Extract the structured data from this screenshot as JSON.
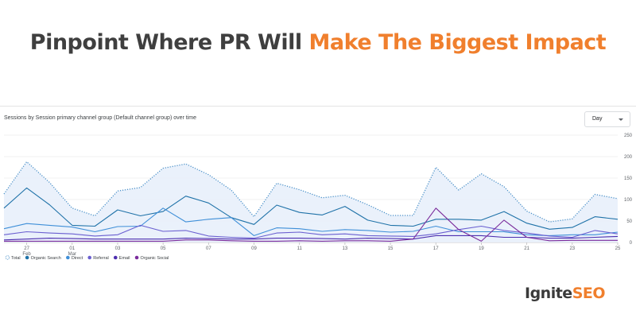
{
  "headline": {
    "dark": "Pinpoint Where PR Will ",
    "accent": "Make The Biggest Impact"
  },
  "card": {
    "title": "Sessions by Session primary channel group (Default channel group) over time",
    "period_select": {
      "value": "Day"
    }
  },
  "logo": {
    "part1": "Ignite",
    "part2": "SEO"
  },
  "colors": {
    "accent": "#f07f2d",
    "dark": "#3f3f3f"
  },
  "chart_data": {
    "type": "line",
    "y_ticks": [
      "0",
      "50",
      "100",
      "150",
      "200",
      "250"
    ],
    "ylim": [
      0,
      250
    ],
    "grid": true,
    "legend_position": "bottom-left",
    "x_ticks": [
      {
        "index": 1,
        "label": "27",
        "sub": "Feb"
      },
      {
        "index": 3,
        "label": "01",
        "sub": "Mar"
      },
      {
        "index": 5,
        "label": "03"
      },
      {
        "index": 7,
        "label": "05"
      },
      {
        "index": 9,
        "label": "07"
      },
      {
        "index": 11,
        "label": "09"
      },
      {
        "index": 13,
        "label": "11"
      },
      {
        "index": 15,
        "label": "13"
      },
      {
        "index": 17,
        "label": "15"
      },
      {
        "index": 19,
        "label": "17"
      },
      {
        "index": 21,
        "label": "19"
      },
      {
        "index": 23,
        "label": "21"
      },
      {
        "index": 25,
        "label": "23"
      },
      {
        "index": 27,
        "label": "25"
      }
    ],
    "series": [
      {
        "name": "Total",
        "color": "#4a90c8",
        "style": "dotted",
        "fill": true,
        "values": [
          113,
          188,
          140,
          80,
          62,
          120,
          128,
          173,
          183,
          158,
          122,
          60,
          138,
          123,
          104,
          110,
          88,
          63,
          63,
          175,
          122,
          160,
          130,
          73,
          48,
          55,
          112,
          102
        ]
      },
      {
        "name": "Organic Search",
        "color": "#1f72a8",
        "style": "solid",
        "values": [
          80,
          127,
          88,
          40,
          38,
          76,
          62,
          72,
          108,
          92,
          58,
          42,
          87,
          70,
          64,
          84,
          52,
          40,
          38,
          54,
          54,
          52,
          72,
          45,
          31,
          35,
          60,
          54
        ]
      },
      {
        "name": "Direct",
        "color": "#3f8fd8",
        "style": "solid",
        "values": [
          32,
          44,
          40,
          36,
          25,
          37,
          38,
          80,
          48,
          54,
          58,
          16,
          34,
          32,
          26,
          30,
          28,
          24,
          26,
          38,
          25,
          25,
          25,
          18,
          16,
          18,
          18,
          24
        ]
      },
      {
        "name": "Referral",
        "color": "#6a5fd0",
        "style": "solid",
        "values": [
          18,
          25,
          22,
          20,
          15,
          18,
          40,
          26,
          28,
          15,
          12,
          10,
          22,
          24,
          18,
          20,
          16,
          15,
          14,
          20,
          30,
          38,
          28,
          22,
          15,
          12,
          28,
          20
        ]
      },
      {
        "name": "Email",
        "color": "#4d2fb0",
        "style": "solid",
        "values": [
          6,
          8,
          10,
          9,
          8,
          8,
          8,
          8,
          10,
          9,
          8,
          8,
          10,
          10,
          9,
          8,
          10,
          9,
          8,
          16,
          16,
          16,
          12,
          12,
          10,
          10,
          12,
          14
        ]
      },
      {
        "name": "Organic Social",
        "color": "#7b2c9c",
        "style": "solid",
        "values": [
          3,
          3,
          3,
          3,
          3,
          3,
          3,
          3,
          6,
          6,
          4,
          3,
          3,
          4,
          3,
          4,
          4,
          3,
          8,
          80,
          30,
          3,
          52,
          12,
          4,
          5,
          5,
          5
        ]
      }
    ]
  }
}
